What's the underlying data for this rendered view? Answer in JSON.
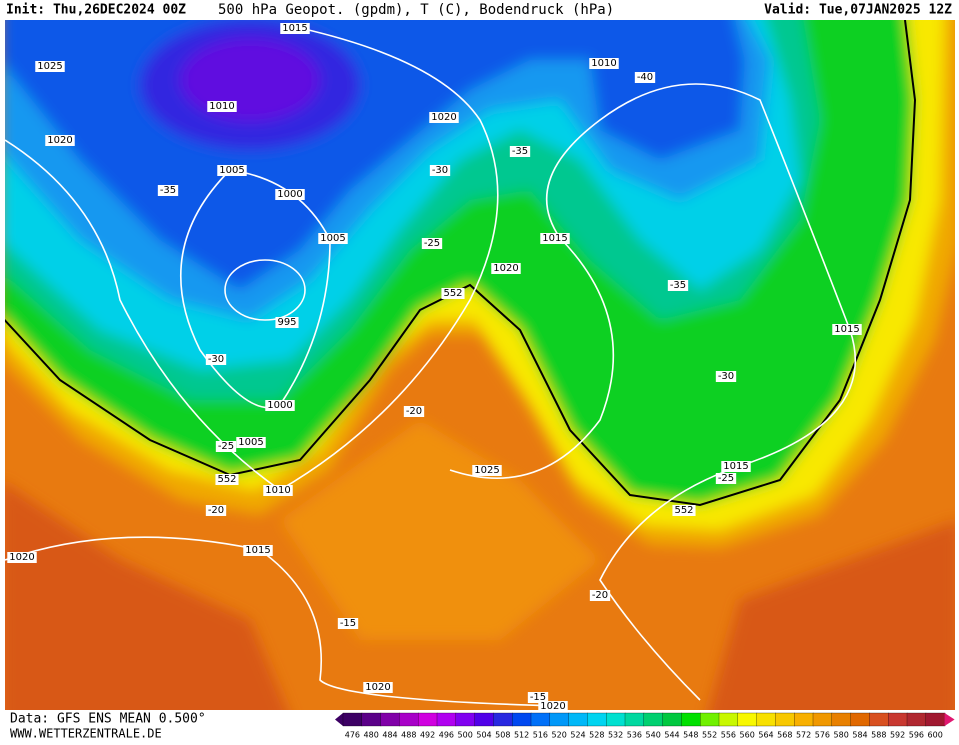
{
  "header": {
    "init": "Init: Thu,26DEC2024 00Z",
    "title": "500 hPa Geopot. (gpdm), T (C), Bodendruck (hPa)",
    "valid": "Valid: Tue,07JAN2025 12Z"
  },
  "map_labels": [
    "1015",
    "1025",
    "1010",
    "1020",
    "1005",
    "-35",
    "1000",
    "1020",
    "-30",
    "1010",
    "-40",
    "-35",
    "1005",
    "-25",
    "1015",
    "1020",
    "552",
    "-35",
    "995",
    "1015",
    "-30",
    "-30",
    "1000",
    "-20",
    "1005",
    "-25",
    "1025",
    "1015",
    "-25",
    "552",
    "1010",
    "-20",
    "552",
    "1015",
    "1020",
    "-20",
    "-15",
    "1020",
    "-15",
    "1020"
  ],
  "legend": {
    "ticks": [
      476,
      480,
      484,
      488,
      492,
      496,
      500,
      504,
      508,
      512,
      516,
      520,
      524,
      528,
      532,
      536,
      540,
      544,
      548,
      552,
      556,
      560,
      564,
      568,
      572,
      576,
      580,
      584,
      588,
      592,
      596,
      600
    ],
    "colors": [
      "#3c0064",
      "#5a0088",
      "#8000a8",
      "#a800c8",
      "#d000e0",
      "#b000f0",
      "#8000f0",
      "#5000e8",
      "#2828e0",
      "#0048f0",
      "#0070f8",
      "#0098f8",
      "#00b8f8",
      "#00d4f0",
      "#00e0d0",
      "#00d8a0",
      "#00d070",
      "#00c840",
      "#00e000",
      "#70f000",
      "#c8f800",
      "#f8f800",
      "#f8e000",
      "#f8c800",
      "#f8b000",
      "#f09800",
      "#e88000",
      "#e06800",
      "#d85020",
      "#c83830",
      "#b02830",
      "#a01830"
    ]
  },
  "footer": {
    "data": "Data: GFS ENS MEAN 0.500°",
    "site": "WWW.WETTERZENTRALE.DE"
  }
}
